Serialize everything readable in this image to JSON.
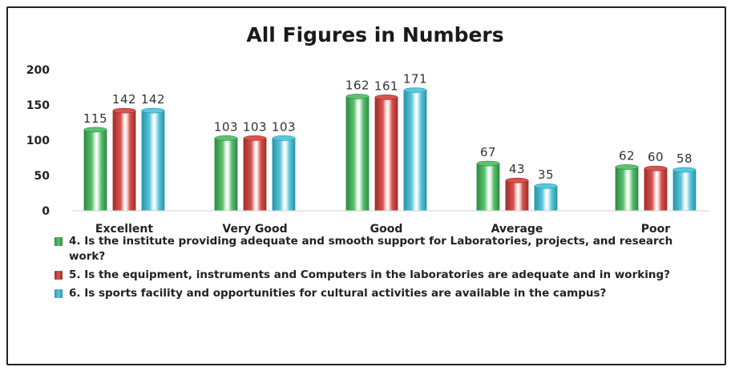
{
  "colors": {
    "series1": "#5cc26e",
    "series2": "#d9534f",
    "series3": "#5bc8dc",
    "series1_dark": "#2f8a44",
    "series2_dark": "#a02e2b",
    "series3_dark": "#2a93a8"
  },
  "chart_data": {
    "type": "bar",
    "title": "All Figures in Numbers",
    "xlabel": "",
    "ylabel": "",
    "ylim": [
      0,
      200
    ],
    "yticks": [
      0,
      50,
      100,
      150,
      200
    ],
    "grid": false,
    "legend_position": "bottom",
    "categories": [
      "Excellent",
      "Very Good",
      "Good",
      "Average",
      "Poor"
    ],
    "series": [
      {
        "name": "4. Is the institute providing adequate and smooth support for Laboratories, projects, and research work?",
        "values": [
          115,
          103,
          162,
          67,
          62
        ]
      },
      {
        "name": "5. Is the equipment, instruments and Computers in the laboratories are adequate and in working?",
        "values": [
          142,
          103,
          161,
          43,
          60
        ]
      },
      {
        "name": "6. Is sports facility and opportunities for cultural activities are available in the campus?",
        "values": [
          142,
          103,
          171,
          35,
          58
        ]
      }
    ]
  }
}
